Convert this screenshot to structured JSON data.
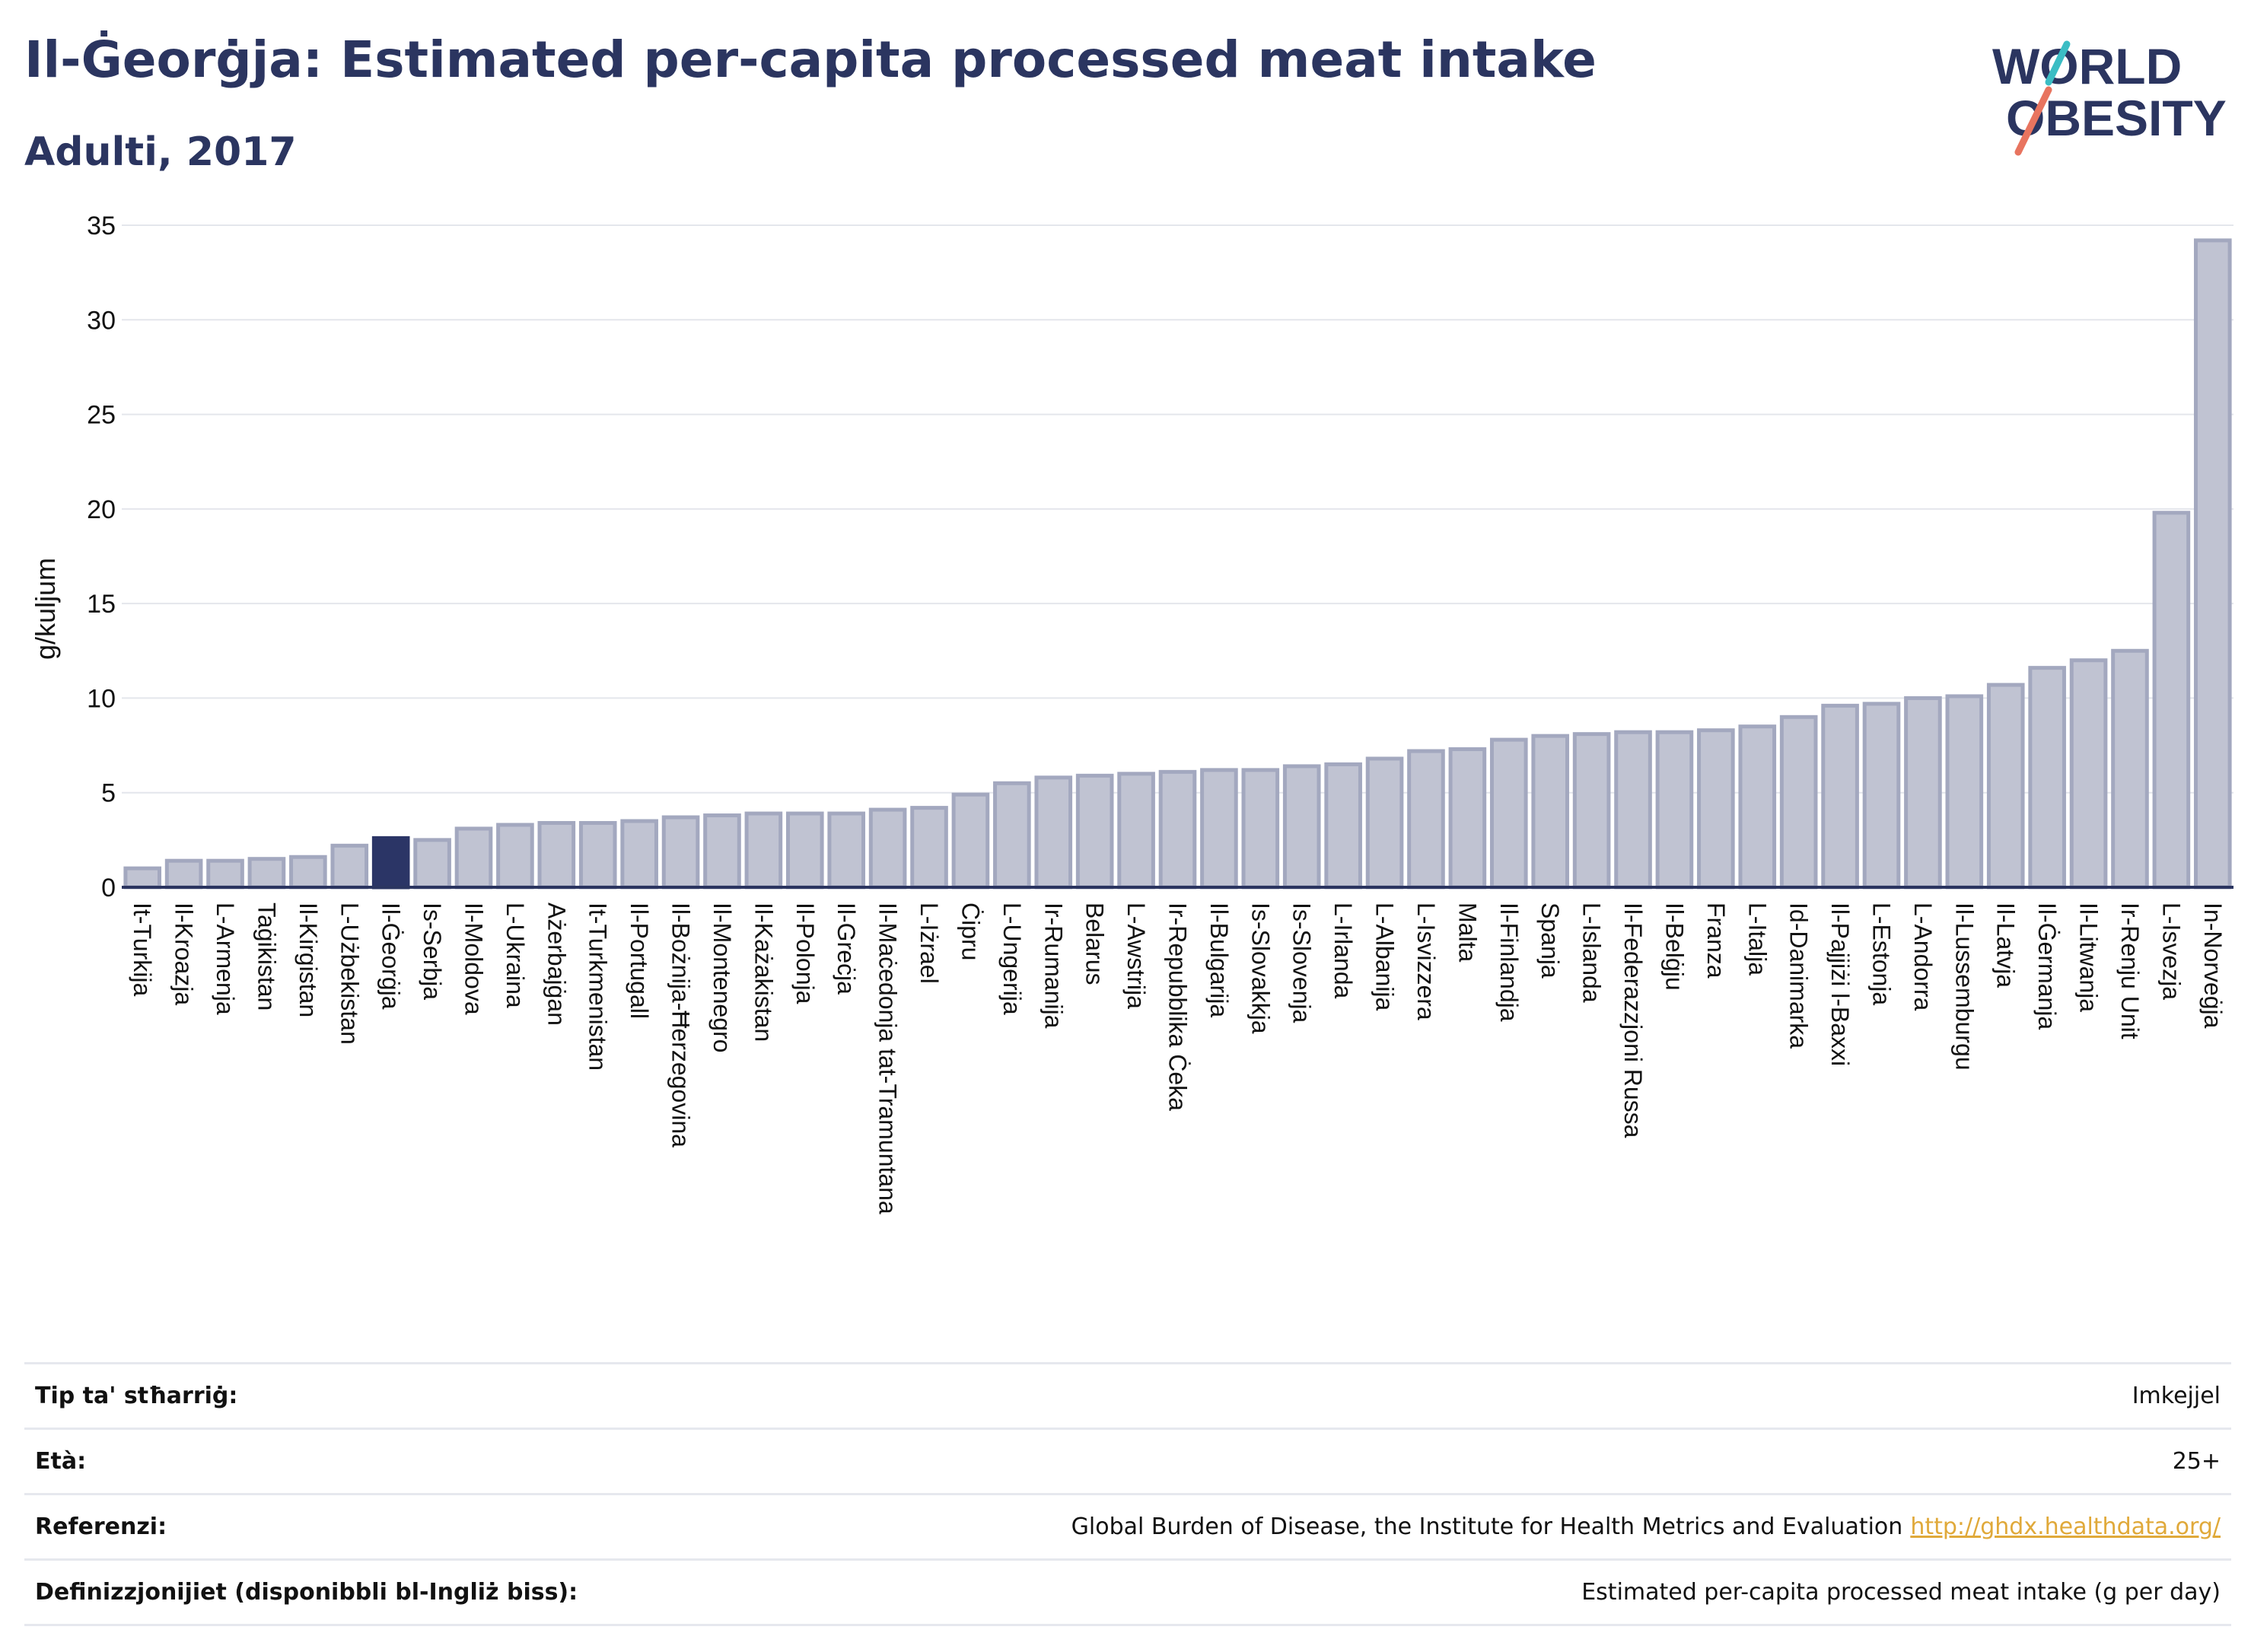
{
  "title": "Il-Ġeorġja: Estimated per-capita processed meat intake",
  "subtitle": "Adulti, 2017",
  "logo": {
    "line1": "WORLD",
    "line2": "OBESITY"
  },
  "colors": {
    "highlight": "#2b3566",
    "bar": "#c0c3d2",
    "bar_edge": "#a3a8bf",
    "text": "#2b3560"
  },
  "chart_data": {
    "type": "bar",
    "ylabel": "g/kuljum",
    "ylim": [
      0,
      35
    ],
    "yticks": [
      0,
      5,
      10,
      15,
      20,
      25,
      30,
      35
    ],
    "grid": true,
    "highlight": "Il-Ġeorġja",
    "categories": [
      "It-Turkija",
      "Il-Kroazja",
      "L-Armenja",
      "Taġikistan",
      "Il-Kirgistan",
      "L-Użbekistan",
      "Il-Ġeorġja",
      "Is-Serbja",
      "Il-Moldova",
      "L-Ukraina",
      "Ażerbajġan",
      "It-Turkmenistan",
      "Il-Portugall",
      "Il-Bożnija-Ħerzegovina",
      "Il-Montenegro",
      "Il-Każakistan",
      "Il-Polonja",
      "Il-Greċja",
      "Il-Maċedonja tat-Tramuntana",
      "L-Iżrael",
      "Ċipru",
      "L-Ungerija",
      "Ir-Rumanija",
      "Belarus",
      "L-Awstrija",
      "Ir-Repubblika Ċeka",
      "Il-Bulgarija",
      "Is-Slovakkja",
      "Is-Slovenja",
      "L-Irlanda",
      "L-Albanija",
      "L-Isvizzera",
      "Malta",
      "Il-Finlandja",
      "Spanja",
      "L-Islanda",
      "Il-Federazzjoni Russa",
      "Il-Belġju",
      "Franza",
      "L-Italja",
      "Id-Danimarka",
      "Il-Pajjiżi l-Baxxi",
      "L-Estonja",
      "L-Andorra",
      "Il-Lussemburgu",
      "Il-Latvja",
      "Il-Ġermanja",
      "Il-Litwanja",
      "Ir-Renju Unit",
      "L-Isvezja",
      "In-Norveġja"
    ],
    "values": [
      1.0,
      1.4,
      1.4,
      1.5,
      1.6,
      2.2,
      2.6,
      2.5,
      3.1,
      3.3,
      3.4,
      3.4,
      3.5,
      3.7,
      3.8,
      3.9,
      3.9,
      3.9,
      4.1,
      4.2,
      4.9,
      5.5,
      5.8,
      5.9,
      6.0,
      6.1,
      6.2,
      6.2,
      6.4,
      6.5,
      6.8,
      7.2,
      7.3,
      7.8,
      8.0,
      8.1,
      8.2,
      8.2,
      8.3,
      8.5,
      9.0,
      9.6,
      9.7,
      10.0,
      10.1,
      10.7,
      11.6,
      12.0,
      12.5,
      19.8,
      34.2
    ]
  },
  "footer": {
    "rows": [
      {
        "label": "Tip ta' stħarriġ:",
        "value": "Imkejjel"
      },
      {
        "label": "Età:",
        "value": "25+"
      },
      {
        "label": "Referenzi:",
        "value": "Global Burden of Disease, the Institute for Health Metrics and Evaluation",
        "link": "http://ghdx.healthdata.org/"
      },
      {
        "label": "Definizzjonijiet (disponibbli bl-Ingliż biss):",
        "value": "Estimated per-capita processed meat intake (g per day)"
      }
    ]
  }
}
